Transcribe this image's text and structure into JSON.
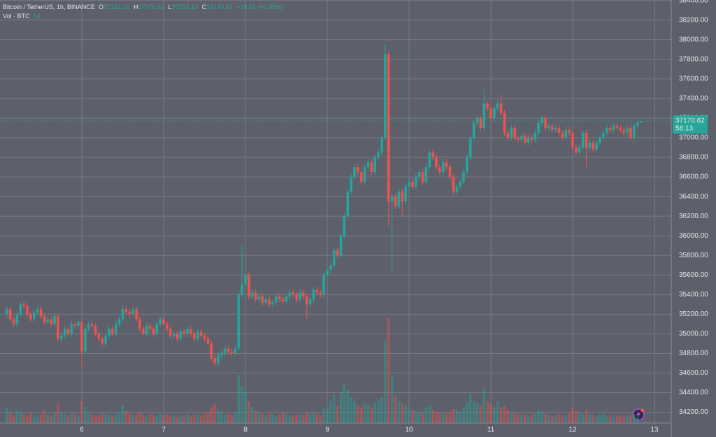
{
  "chart_data": {
    "type": "candlestick",
    "header": {
      "symbol": "Bitcoin / TetherUS, 1h, BINANCE",
      "o_label": "O",
      "o": "37152.10",
      "h_label": "H",
      "h": "37170.62",
      "l_label": "L",
      "l": "37152.10",
      "c_label": "C",
      "c": "37170.62",
      "change": "+18.51 (+0.05%)",
      "vol_label": "Vol · BTC",
      "vol": "14"
    },
    "last_price_label": "37170.62",
    "countdown": "58:13",
    "up_color": "#26a69a",
    "down_color": "#ef5350",
    "grid": true,
    "xlim": [
      5,
      13.205
    ],
    "xticks": [
      6,
      7,
      8,
      9,
      10,
      11,
      12,
      13
    ],
    "ylim": [
      34090,
      38405
    ],
    "yticks": [
      {
        "value": 34200,
        "label": "34200.00"
      },
      {
        "value": 34400,
        "label": "34400.00"
      },
      {
        "value": 34600,
        "label": "34600.00"
      },
      {
        "value": 34800,
        "label": "34800.00"
      },
      {
        "value": 35000,
        "label": "35000.00"
      },
      {
        "value": 35200,
        "label": "35200.00"
      },
      {
        "value": 35400,
        "label": "35400.00"
      },
      {
        "value": 35600,
        "label": "35600.00"
      },
      {
        "value": 35800,
        "label": "35800.00"
      },
      {
        "value": 36000,
        "label": "36000.00"
      },
      {
        "value": 36200,
        "label": "36200.00"
      },
      {
        "value": 36400,
        "label": "36400.00"
      },
      {
        "value": 36600,
        "label": "36600.00"
      },
      {
        "value": 36800,
        "label": "36800.00"
      },
      {
        "value": 37000,
        "label": "37000.00"
      },
      {
        "value": 37200,
        "label": "37200.00"
      },
      {
        "value": 37400,
        "label": "37400.00"
      },
      {
        "value": 37600,
        "label": "37600.00"
      },
      {
        "value": 37800,
        "label": "37800.00"
      },
      {
        "value": 38000,
        "label": "38000.00"
      },
      {
        "value": 38200,
        "label": "38200.00"
      },
      {
        "value": 38400,
        "label": "38400.00"
      }
    ],
    "volume_ylim": [
      0,
      16000
    ],
    "x": [
      5.083,
      5.125,
      5.167,
      5.208,
      5.25,
      5.292,
      5.333,
      5.375,
      5.417,
      5.458,
      5.5,
      5.542,
      5.583,
      5.625,
      5.667,
      5.708,
      5.75,
      5.792,
      5.833,
      5.875,
      5.917,
      5.958,
      6,
      6.042,
      6.083,
      6.125,
      6.167,
      6.208,
      6.25,
      6.292,
      6.333,
      6.375,
      6.417,
      6.458,
      6.5,
      6.542,
      6.583,
      6.625,
      6.667,
      6.708,
      6.75,
      6.792,
      6.833,
      6.875,
      6.917,
      6.958,
      7,
      7.042,
      7.083,
      7.125,
      7.167,
      7.208,
      7.25,
      7.292,
      7.333,
      7.375,
      7.417,
      7.458,
      7.5,
      7.542,
      7.583,
      7.625,
      7.667,
      7.708,
      7.75,
      7.792,
      7.833,
      7.875,
      7.917,
      7.958,
      8,
      8.042,
      8.083,
      8.125,
      8.167,
      8.208,
      8.25,
      8.292,
      8.333,
      8.375,
      8.417,
      8.458,
      8.5,
      8.542,
      8.583,
      8.625,
      8.667,
      8.708,
      8.75,
      8.792,
      8.833,
      8.875,
      8.917,
      8.958,
      9,
      9.042,
      9.083,
      9.125,
      9.167,
      9.208,
      9.25,
      9.292,
      9.333,
      9.375,
      9.417,
      9.458,
      9.5,
      9.542,
      9.583,
      9.625,
      9.667,
      9.708,
      9.75,
      9.792,
      9.833,
      9.875,
      9.917,
      9.958,
      10,
      10.042,
      10.083,
      10.125,
      10.167,
      10.208,
      10.25,
      10.292,
      10.333,
      10.375,
      10.417,
      10.458,
      10.5,
      10.542,
      10.583,
      10.625,
      10.667,
      10.708,
      10.75,
      10.792,
      10.833,
      10.875,
      10.917,
      10.958,
      11,
      11.042,
      11.083,
      11.125,
      11.167,
      11.208,
      11.25,
      11.292,
      11.333,
      11.375,
      11.417,
      11.458,
      11.5,
      11.542,
      11.583,
      11.625,
      11.667,
      11.708,
      11.75,
      11.792,
      11.833,
      11.875,
      11.917,
      11.958,
      12,
      12.042,
      12.083,
      12.125,
      12.167,
      12.208,
      12.25,
      12.292,
      12.333,
      12.375,
      12.417,
      12.458,
      12.5,
      12.542,
      12.583,
      12.625,
      12.667,
      12.708,
      12.75,
      12.792,
      12.833
    ],
    "open": [
      35200,
      35250,
      35150,
      35100,
      35200,
      35300,
      35280,
      35200,
      35150,
      35220,
      35250,
      35180,
      35120,
      35150,
      35100,
      35180,
      34950,
      34980,
      35050,
      35000,
      35100,
      35080,
      35120,
      34820,
      35050,
      35100,
      35080,
      35000,
      34950,
      34900,
      34980,
      35050,
      35000,
      35100,
      35150,
      35250,
      35220,
      35200,
      35250,
      35150,
      35050,
      35000,
      35080,
      35050,
      35000,
      35100,
      35150,
      35100,
      35050,
      34980,
      35000,
      34950,
      35020,
      35000,
      35050,
      35000,
      34950,
      35020,
      34980,
      34950,
      34900,
      34750,
      34700,
      34780,
      34800,
      34850,
      34820,
      34800,
      34850,
      35400,
      35500,
      35600,
      35380,
      35420,
      35350,
      35380,
      35320,
      35350,
      35300,
      35320,
      35380,
      35350,
      35330,
      35380,
      35420,
      35400,
      35350,
      35420,
      35380,
      35300,
      35350,
      35450,
      35420,
      35400,
      35600,
      35650,
      35700,
      35850,
      35800,
      36000,
      36200,
      36450,
      36600,
      36700,
      36650,
      36550,
      36700,
      36750,
      36650,
      36800,
      36850,
      37000,
      37850,
      36350,
      36400,
      36300,
      36450,
      36350,
      36500,
      36550,
      36500,
      36600,
      36650,
      36550,
      36700,
      36850,
      36800,
      36700,
      36650,
      36750,
      36700,
      36600,
      36450,
      36500,
      36550,
      36650,
      36800,
      37000,
      37150,
      37200,
      37100,
      37350,
      37300,
      37200,
      37300,
      37350,
      37250,
      37050,
      37000,
      37100,
      37000,
      36980,
      37020,
      36950,
      37000,
      36980,
      37050,
      37150,
      37200,
      37100,
      37120,
      37080,
      37100,
      37050,
      37000,
      37080,
      37050,
      36900,
      36850,
      36900,
      37050,
      36900,
      36950,
      36880,
      36950,
      37000,
      37050,
      37100,
      37080,
      37120,
      37100,
      37080,
      37050,
      37100,
      37000,
      37120,
      37152.1
    ],
    "high": [
      35280,
      35280,
      35180,
      35230,
      35330,
      35330,
      35310,
      35230,
      35250,
      35280,
      35280,
      35210,
      35180,
      35180,
      35210,
      35210,
      35010,
      35080,
      35080,
      35130,
      35130,
      35150,
      35150,
      35080,
      35130,
      35130,
      35110,
      35030,
      34980,
      35010,
      35080,
      35080,
      35130,
      35180,
      35280,
      35280,
      35250,
      35280,
      35280,
      35180,
      35080,
      35110,
      35110,
      35080,
      35130,
      35180,
      35180,
      35130,
      35080,
      35030,
      35030,
      35050,
      35050,
      35080,
      35080,
      35030,
      35050,
      35050,
      35010,
      34980,
      34930,
      34780,
      34810,
      34830,
      34880,
      34880,
      34850,
      34880,
      35430,
      35900,
      35630,
      35630,
      35450,
      35450,
      35410,
      35410,
      35380,
      35380,
      35350,
      35410,
      35410,
      35380,
      35410,
      35450,
      35450,
      35430,
      35450,
      35450,
      35410,
      35380,
      35480,
      35480,
      35450,
      35630,
      35680,
      35730,
      35880,
      35880,
      36030,
      36230,
      36480,
      36630,
      36730,
      36730,
      36680,
      36730,
      36780,
      36780,
      36830,
      36880,
      37030,
      37950,
      37880,
      36430,
      36430,
      36480,
      36480,
      36530,
      36580,
      36580,
      36630,
      36680,
      36680,
      36730,
      36880,
      36880,
      36830,
      36730,
      36780,
      36780,
      36730,
      36630,
      36530,
      36580,
      36680,
      36830,
      37030,
      37180,
      37230,
      37230,
      37500,
      37380,
      37330,
      37330,
      37380,
      37450,
      37280,
      37080,
      37130,
      37130,
      37030,
      37050,
      37050,
      37030,
      37030,
      37080,
      37180,
      37230,
      37230,
      37150,
      37150,
      37130,
      37130,
      37080,
      37110,
      37110,
      37080,
      36930,
      36930,
      37080,
      37080,
      36980,
      36980,
      36980,
      37030,
      37080,
      37130,
      37130,
      37150,
      37150,
      37130,
      37110,
      37130,
      37130,
      37150,
      37182.1,
      37170.62
    ],
    "low": [
      35170,
      35120,
      35070,
      35070,
      35170,
      35250,
      35170,
      35120,
      35120,
      35190,
      35150,
      35090,
      35090,
      35070,
      35070,
      34920,
      34920,
      34950,
      34970,
      34970,
      35050,
      35050,
      34650,
      34790,
      35020,
      35050,
      34970,
      34920,
      34870,
      34870,
      34950,
      34970,
      34970,
      35070,
      35120,
      35190,
      35170,
      35170,
      35120,
      35020,
      34970,
      34970,
      35020,
      34970,
      34970,
      35070,
      35070,
      35020,
      34950,
      34950,
      34920,
      34920,
      34970,
      34970,
      34970,
      34920,
      34920,
      34950,
      34920,
      34870,
      34720,
      34670,
      34670,
      34750,
      34770,
      34790,
      34770,
      34770,
      34820,
      35370,
      35470,
      35350,
      35350,
      35320,
      35320,
      35290,
      35290,
      35270,
      35270,
      35290,
      35320,
      35300,
      35300,
      35350,
      35370,
      35320,
      35320,
      35350,
      35150,
      35270,
      35320,
      35390,
      35370,
      35370,
      35570,
      35620,
      35670,
      35770,
      35770,
      35970,
      36170,
      36420,
      36570,
      36620,
      36520,
      36520,
      36670,
      36620,
      36620,
      36770,
      36820,
      36970,
      36100,
      35600,
      36270,
      36270,
      36200,
      36320,
      36470,
      36470,
      36470,
      36570,
      36520,
      36520,
      36670,
      36770,
      36670,
      36620,
      36620,
      36670,
      36570,
      36420,
      36420,
      36470,
      36520,
      36620,
      36770,
      36970,
      37120,
      37070,
      37070,
      37270,
      37170,
      37170,
      37270,
      37220,
      37020,
      36970,
      36970,
      36970,
      36950,
      36950,
      36920,
      36920,
      36950,
      36950,
      37020,
      37120,
      37070,
      37070,
      37050,
      37050,
      37020,
      36970,
      36970,
      37020,
      36870,
      36820,
      36820,
      36870,
      36700,
      36870,
      36850,
      36850,
      36920,
      36970,
      37020,
      37050,
      37050,
      37070,
      37050,
      37020,
      37020,
      36970,
      36970,
      37090,
      37152.1
    ],
    "close": [
      35250,
      35150,
      35100,
      35200,
      35300,
      35280,
      35200,
      35150,
      35220,
      35250,
      35180,
      35120,
      35150,
      35100,
      35180,
      34950,
      34980,
      35050,
      35000,
      35100,
      35080,
      35120,
      34820,
      35050,
      35100,
      35080,
      35000,
      34950,
      34900,
      34980,
      35050,
      35000,
      35100,
      35150,
      35250,
      35220,
      35200,
      35250,
      35150,
      35050,
      35000,
      35080,
      35050,
      35000,
      35100,
      35150,
      35100,
      35050,
      34980,
      35000,
      34950,
      35020,
      35000,
      35050,
      35000,
      34950,
      35020,
      34980,
      34950,
      34900,
      34750,
      34700,
      34780,
      34800,
      34850,
      34820,
      34800,
      34850,
      35400,
      35500,
      35600,
      35380,
      35420,
      35350,
      35380,
      35320,
      35350,
      35300,
      35320,
      35380,
      35350,
      35330,
      35380,
      35420,
      35400,
      35350,
      35420,
      35380,
      35300,
      35350,
      35450,
      35420,
      35400,
      35600,
      35650,
      35700,
      35850,
      35800,
      36000,
      36200,
      36450,
      36600,
      36700,
      36650,
      36550,
      36700,
      36750,
      36650,
      36800,
      36850,
      37000,
      37850,
      36350,
      36400,
      36300,
      36450,
      36350,
      36500,
      36550,
      36500,
      36600,
      36650,
      36550,
      36700,
      36850,
      36800,
      36700,
      36650,
      36750,
      36700,
      36600,
      36450,
      36500,
      36550,
      36650,
      36800,
      37000,
      37150,
      37200,
      37100,
      37350,
      37300,
      37200,
      37300,
      37350,
      37250,
      37050,
      37000,
      37100,
      37000,
      36980,
      37020,
      36950,
      37000,
      36980,
      37050,
      37150,
      37200,
      37100,
      37120,
      37080,
      37100,
      37050,
      37000,
      37080,
      37050,
      36900,
      36850,
      36900,
      37050,
      36900,
      36950,
      36880,
      36950,
      37000,
      37050,
      37100,
      37080,
      37120,
      37100,
      37080,
      37050,
      37100,
      37000,
      37120,
      37152.1,
      37170.62
    ],
    "volume": [
      1800,
      1200,
      900,
      1500,
      1300,
      1000,
      800,
      1100,
      900,
      700,
      1000,
      1400,
      900,
      800,
      1100,
      2200,
      1300,
      1000,
      900,
      1200,
      1000,
      800,
      2500,
      1800,
      1200,
      1000,
      900,
      800,
      1100,
      1000,
      900,
      800,
      1000,
      1200,
      2000,
      1400,
      1100,
      900,
      1000,
      1200,
      900,
      800,
      1000,
      900,
      800,
      1100,
      900,
      1000,
      800,
      900,
      700,
      800,
      900,
      1000,
      800,
      900,
      1000,
      800,
      1100,
      1300,
      1800,
      2200,
      1500,
      1300,
      1000,
      1100,
      900,
      1200,
      5500,
      4200,
      3500,
      2500,
      1800,
      1500,
      1200,
      1000,
      900,
      1100,
      1000,
      800,
      900,
      1200,
      1000,
      900,
      800,
      1000,
      1100,
      900,
      1200,
      1000,
      1300,
      1100,
      900,
      1800,
      1600,
      2500,
      3200,
      2000,
      3500,
      4500,
      3800,
      3000,
      2500,
      2000,
      1800,
      2200,
      2000,
      1800,
      2300,
      2500,
      3000,
      9500,
      12000,
      5500,
      3000,
      2500,
      2200,
      2000,
      1800,
      1500,
      1400,
      1300,
      1200,
      1800,
      2000,
      1500,
      1300,
      1200,
      1100,
      1200,
      1300,
      1600,
      1500,
      1300,
      1800,
      2400,
      3300,
      2500,
      2300,
      2000,
      4000,
      2500,
      2200,
      1800,
      2500,
      1800,
      2000,
      1500,
      1300,
      1200,
      1000,
      900,
      1000,
      800,
      900,
      1100,
      1500,
      1300,
      1000,
      900,
      800,
      900,
      1000,
      900,
      800,
      1100,
      1800,
      1400,
      1200,
      1000,
      1500,
      1000,
      900,
      800,
      900,
      1000,
      800,
      900,
      700,
      800,
      900,
      700,
      800,
      900,
      1000,
      600,
      14
    ]
  }
}
